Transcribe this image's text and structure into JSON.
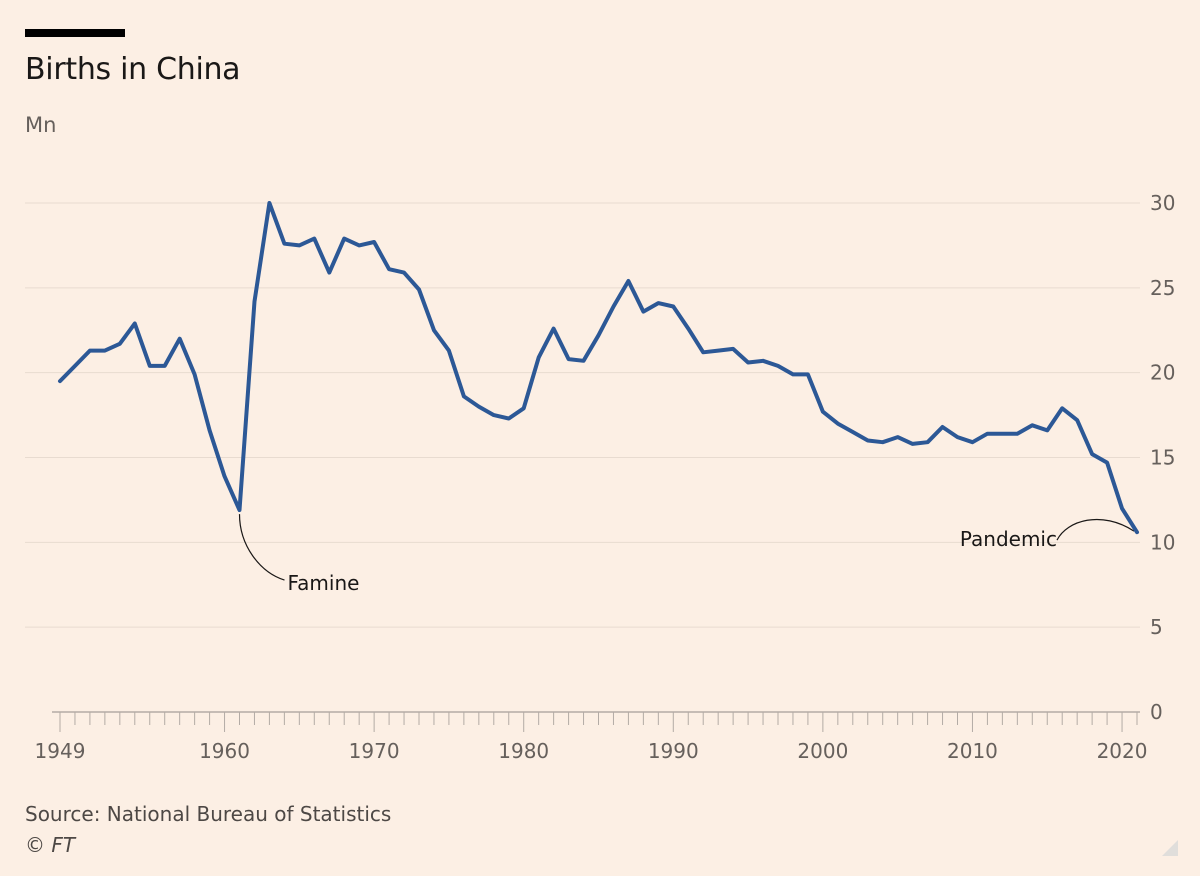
{
  "header": {
    "title": "Births in China",
    "unit": "Mn"
  },
  "footer": {
    "source": "Source: National Bureau of Statistics",
    "copyright": "© FT"
  },
  "colors": {
    "background": "#fcefe4",
    "line": "#2c5896",
    "grid": "#e8dbd0",
    "axis": "#b3aba5",
    "text": "#66605c"
  },
  "chart_data": {
    "type": "line",
    "title": "Births in China",
    "ylabel": "Mn",
    "xlabel": "",
    "xlim": [
      1949,
      2021
    ],
    "ylim": [
      0,
      30
    ],
    "yticks": [
      0,
      5,
      10,
      15,
      20,
      25,
      30
    ],
    "xtick_labels": [
      1949,
      1960,
      1970,
      1980,
      1990,
      2000,
      2010,
      2020
    ],
    "y_axis_side": "right",
    "grid": true,
    "series": [
      {
        "x": [
          1949,
          1950,
          1951,
          1952,
          1953,
          1954,
          1955,
          1956,
          1957,
          1958,
          1959,
          1960,
          1961,
          1962,
          1963,
          1964,
          1965,
          1966,
          1967,
          1968,
          1969,
          1970,
          1971,
          1972,
          1973,
          1974,
          1975,
          1976,
          1977,
          1978,
          1979,
          1980,
          1981,
          1982,
          1983,
          1984,
          1985,
          1986,
          1987,
          1988,
          1989,
          1990,
          1991,
          1992,
          1993,
          1994,
          1995,
          1996,
          1997,
          1998,
          1999,
          2000,
          2001,
          2002,
          2003,
          2004,
          2005,
          2006,
          2007,
          2008,
          2009,
          2010,
          2011,
          2012,
          2013,
          2014,
          2015,
          2016,
          2017,
          2018,
          2019,
          2020,
          2021
        ],
        "values": [
          19.5,
          20.4,
          21.3,
          21.3,
          21.7,
          22.9,
          20.4,
          20.4,
          22.0,
          19.9,
          16.6,
          13.9,
          11.9,
          24.2,
          30.0,
          27.6,
          27.5,
          27.9,
          25.9,
          27.9,
          27.5,
          27.7,
          26.1,
          25.9,
          24.9,
          22.5,
          21.3,
          18.6,
          18.0,
          17.5,
          17.3,
          17.9,
          20.9,
          22.6,
          20.8,
          20.7,
          22.2,
          23.9,
          25.4,
          23.6,
          24.1,
          23.9,
          22.6,
          21.2,
          21.3,
          21.4,
          20.6,
          20.7,
          20.4,
          19.9,
          19.9,
          17.7,
          17.0,
          16.5,
          16.0,
          15.9,
          16.2,
          15.8,
          15.9,
          16.8,
          16.2,
          15.9,
          16.4,
          16.4,
          16.4,
          16.9,
          16.6,
          17.9,
          17.2,
          15.2,
          14.7,
          12.0,
          10.6
        ]
      }
    ],
    "annotations": [
      {
        "label": "Famine",
        "x": 1961,
        "y": 11.9
      },
      {
        "label": "Pandemic",
        "x": 2021,
        "y": 10.6
      }
    ]
  }
}
